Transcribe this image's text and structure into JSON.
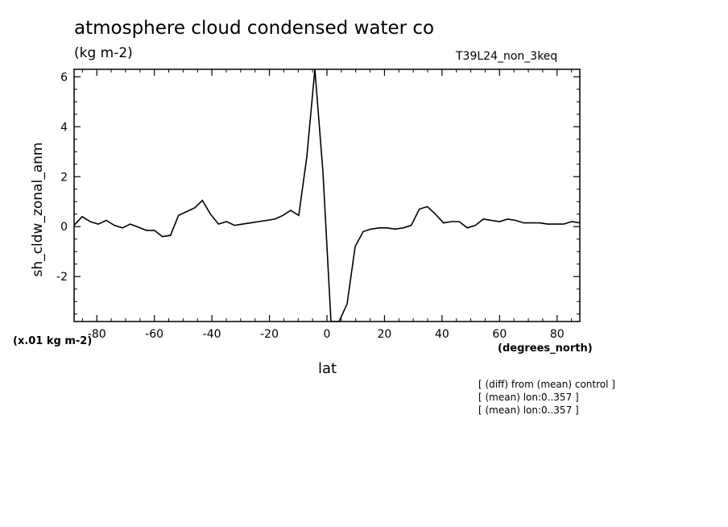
{
  "chart_data": {
    "type": "line",
    "title": "atmosphere cloud condensed water co",
    "units": "(kg m-2)",
    "run_label": "T39L24_non_3keq",
    "ylabel": "sh_cldw_zonal_anm",
    "y_scale_note": "(x.01 kg m-2)",
    "xlabel": "lat",
    "x_units": "(degrees_north)",
    "xlim": [
      -87.9,
      87.9
    ],
    "ylim": [
      -3.8,
      6.3
    ],
    "x_ticks": [
      -80,
      -60,
      -40,
      -20,
      0,
      20,
      40,
      60,
      80
    ],
    "x_tick_labels": [
      "-80",
      "-60",
      "-40",
      "-20",
      "0",
      "20",
      "40",
      "60",
      "80"
    ],
    "y_ticks": [
      -2,
      0,
      2,
      4,
      6
    ],
    "y_tick_labels": [
      "-2",
      "0",
      "2",
      "4",
      "6"
    ],
    "grid": false,
    "series": [
      {
        "x": [
          -87.9,
          -85.1,
          -82.3,
          -79.5,
          -76.7,
          -73.9,
          -71.1,
          -68.4,
          -65.6,
          -62.8,
          -60.0,
          -57.2,
          -54.4,
          -51.6,
          -48.8,
          -46.0,
          -43.3,
          -40.5,
          -37.7,
          -34.9,
          -32.1,
          -29.3,
          -26.5,
          -23.7,
          -20.9,
          -18.1,
          -15.3,
          -12.6,
          -9.8,
          -7.0,
          -4.2,
          -1.4,
          1.4,
          4.2,
          7.0,
          9.8,
          12.6,
          15.3,
          18.1,
          20.9,
          23.7,
          26.5,
          29.3,
          32.1,
          34.9,
          37.7,
          40.5,
          43.3,
          46.0,
          48.8,
          51.6,
          54.4,
          57.2,
          60.0,
          62.8,
          65.6,
          68.4,
          71.1,
          73.9,
          76.7,
          79.5,
          82.3,
          85.1,
          87.9
        ],
        "y": [
          0.05,
          0.4,
          0.2,
          0.1,
          0.25,
          0.05,
          -0.05,
          0.1,
          -0.02,
          -0.15,
          -0.15,
          -0.4,
          -0.35,
          0.45,
          0.6,
          0.75,
          1.05,
          0.5,
          0.1,
          0.2,
          0.05,
          0.1,
          0.15,
          0.2,
          0.25,
          0.3,
          0.45,
          0.65,
          0.45,
          2.8,
          6.3,
          2.2,
          -3.8,
          -3.8,
          -3.1,
          -0.8,
          -0.2,
          -0.1,
          -0.05,
          -0.05,
          -0.1,
          -0.05,
          0.05,
          0.7,
          0.8,
          0.5,
          0.15,
          0.2,
          0.2,
          -0.05,
          0.05,
          0.3,
          0.25,
          0.2,
          0.3,
          0.25,
          0.15,
          0.15,
          0.15,
          0.1,
          0.1,
          0.1,
          0.2,
          0.15
        ]
      }
    ]
  },
  "notes": [
    "[ (diff) from (mean) control ]",
    "[ (mean) lon:0..357 ]",
    "[ (mean) lon:0..357 ]"
  ]
}
